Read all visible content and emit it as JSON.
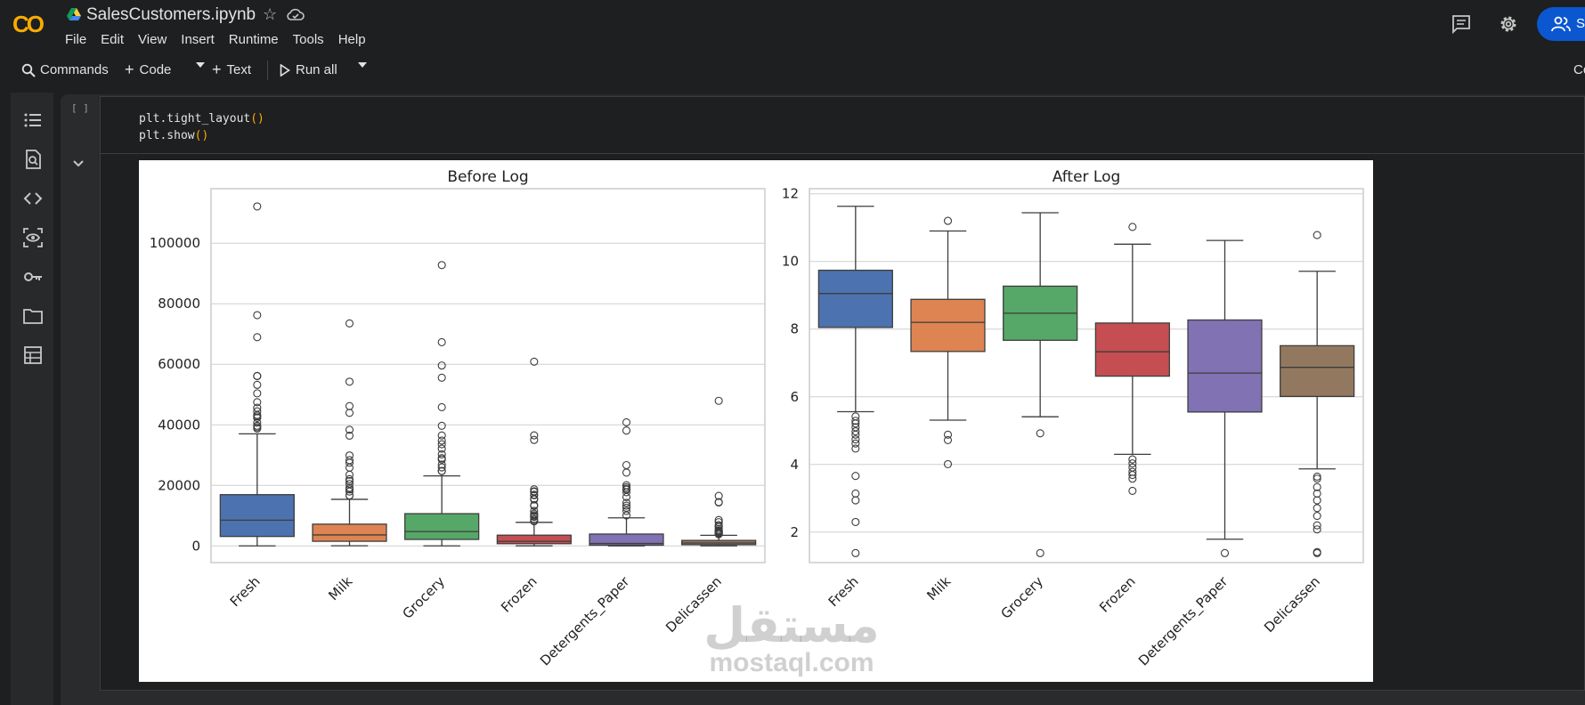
{
  "header": {
    "logo_text": "CO",
    "title": "SalesCustomers.ipynb",
    "menu": [
      "File",
      "Edit",
      "View",
      "Insert",
      "Runtime",
      "Tools",
      "Help"
    ],
    "share_label": "S",
    "icons": [
      "drive-icon",
      "star-icon",
      "cloud-icon",
      "comment-icon",
      "settings-icon",
      "people-icon"
    ]
  },
  "toolbar": {
    "commands_label": "Commands",
    "code_label": "Code",
    "text_label": "Text",
    "run_all_label": "Run all",
    "right_label": "Co"
  },
  "sidebar": {
    "icons": [
      "toc-icon",
      "find-icon",
      "code-icon",
      "variables-icon",
      "key-icon",
      "folder-icon",
      "table-icon"
    ]
  },
  "cell": {
    "bracket": "[ ]",
    "code_lines": [
      {
        "fn": "plt.tight_layout",
        "paren": "()"
      },
      {
        "fn": "plt.show",
        "paren": "()"
      }
    ]
  },
  "watermark": {
    "arabic": "مستقل",
    "latin": "mostaql.com"
  },
  "chart_data": [
    {
      "type": "box",
      "title": "Before Log",
      "categories": [
        "Fresh",
        "Milk",
        "Grocery",
        "Frozen",
        "Detergents_Paper",
        "Delicassen"
      ],
      "ylim": [
        -5500,
        118000
      ],
      "yticks": [
        0,
        20000,
        40000,
        60000,
        80000,
        100000
      ],
      "ytick_labels": [
        "0",
        "20000",
        "40000",
        "60000",
        "80000",
        "100000"
      ],
      "grid": true,
      "boxes": [
        {
          "name": "Fresh",
          "color": "#4c72b0",
          "whisker_low": 3,
          "q1": 3128,
          "median": 8504,
          "q3": 16934,
          "whisker_high": 37036,
          "outliers": [
            112151,
            76237,
            68951,
            56159,
            56083,
            53205,
            50405,
            47493,
            45640,
            44466,
            43265,
            42786,
            42312,
            40721,
            39679,
            39228,
            38793
          ]
        },
        {
          "name": "Milk",
          "color": "#dd8452",
          "whisker_low": 55,
          "q1": 1533,
          "median": 3627,
          "q3": 7190,
          "whisker_high": 15400,
          "outliers": [
            73498,
            54259,
            46197,
            43950,
            38369,
            36423,
            29892,
            28326,
            27472,
            25862,
            23527,
            22044,
            21412,
            20484,
            19191,
            18664,
            17972,
            16687,
            16599
          ]
        },
        {
          "name": "Grocery",
          "color": "#55a868",
          "whisker_low": 3,
          "q1": 2153,
          "median": 4756,
          "q3": 10656,
          "whisker_high": 23127,
          "outliers": [
            92780,
            67298,
            59598,
            55571,
            45828,
            39694,
            36486,
            34792,
            33586,
            32114,
            30243,
            28986,
            28540,
            26870,
            25957,
            24773,
            24708
          ]
        },
        {
          "name": "Frozen",
          "color": "#c44e52",
          "whisker_low": 25,
          "q1": 742,
          "median": 1526,
          "q3": 3554,
          "whisker_high": 7782,
          "outliers": [
            60869,
            36534,
            35009,
            18711,
            18028,
            17866,
            16919,
            16745,
            15601,
            15348,
            13486,
            13223,
            11559,
            10643,
            10155,
            9806,
            9584,
            8853,
            8321,
            8132
          ]
        },
        {
          "name": "Detergents_Paper",
          "color": "#8172b3",
          "whisker_low": 3,
          "q1": 257,
          "median": 816,
          "q3": 3922,
          "whisker_high": 9265,
          "outliers": [
            40827,
            38102,
            26701,
            24231,
            20070,
            19410,
            18906,
            18594,
            17740,
            16171,
            14235,
            13308,
            12591,
            11577,
            10069
          ]
        },
        {
          "name": "Delicassen",
          "color": "#937860",
          "whisker_low": 3,
          "q1": 408,
          "median": 966,
          "q3": 1820,
          "whisker_high": 3508,
          "outliers": [
            47943,
            16523,
            14472,
            14351,
            8550,
            7844,
            6854,
            6465,
            6372,
            5609,
            5137,
            4948,
            4834,
            4763,
            4627,
            4341,
            4196,
            4100,
            3977,
            3881
          ]
        }
      ]
    },
    {
      "type": "box",
      "title": "After Log",
      "categories": [
        "Fresh",
        "Milk",
        "Grocery",
        "Frozen",
        "Detergents_Paper",
        "Delicassen"
      ],
      "ylim": [
        1.1,
        12.15
      ],
      "yticks": [
        2,
        4,
        6,
        8,
        10,
        12
      ],
      "ytick_labels": [
        "2",
        "4",
        "6",
        "8",
        "10",
        "12"
      ],
      "grid": true,
      "boxes": [
        {
          "name": "Fresh",
          "color": "#4c72b0",
          "whisker_low": 5.56,
          "q1": 8.05,
          "median": 9.05,
          "q3": 9.74,
          "whisker_high": 11.63,
          "outliers": [
            5.42,
            5.29,
            5.21,
            5.1,
            4.98,
            4.88,
            4.74,
            4.62,
            4.47,
            3.66,
            3.14,
            2.94,
            2.3,
            1.38
          ]
        },
        {
          "name": "Milk",
          "color": "#dd8452",
          "whisker_low": 5.31,
          "q1": 7.34,
          "median": 8.2,
          "q3": 8.88,
          "whisker_high": 10.9,
          "outliers": [
            11.2,
            4.88,
            4.72,
            4.01
          ]
        },
        {
          "name": "Grocery",
          "color": "#55a868",
          "whisker_low": 5.41,
          "q1": 7.67,
          "median": 8.47,
          "q3": 9.27,
          "whisker_high": 11.44,
          "outliers": [
            4.92,
            1.38
          ]
        },
        {
          "name": "Frozen",
          "color": "#c44e52",
          "whisker_low": 4.3,
          "q1": 6.61,
          "median": 7.33,
          "q3": 8.18,
          "whisker_high": 10.51,
          "outliers": [
            11.02,
            4.15,
            4.03,
            3.91,
            3.78,
            3.69,
            3.58,
            3.22
          ]
        },
        {
          "name": "Detergents_Paper",
          "color": "#8172b3",
          "whisker_low": 1.79,
          "q1": 5.55,
          "median": 6.7,
          "q3": 8.27,
          "whisker_high": 10.62,
          "outliers": [
            1.38
          ]
        },
        {
          "name": "Delicassen",
          "color": "#937860",
          "whisker_low": 3.87,
          "q1": 6.01,
          "median": 6.87,
          "q3": 7.51,
          "whisker_high": 9.71,
          "outliers": [
            10.78,
            3.64,
            3.58,
            3.33,
            3.14,
            2.94,
            2.71,
            2.48,
            2.2,
            2.08,
            1.41,
            1.38
          ]
        }
      ]
    }
  ]
}
